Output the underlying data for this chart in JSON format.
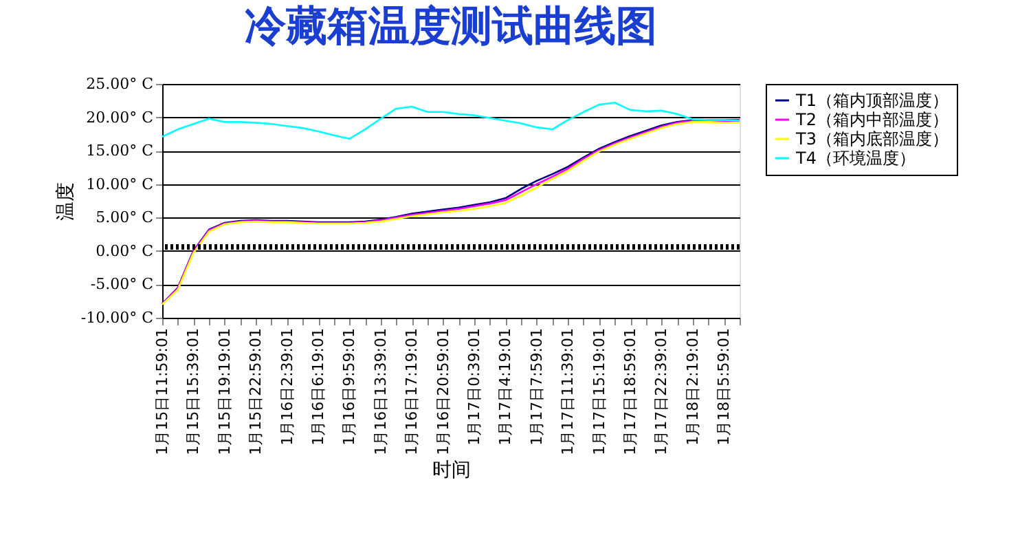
{
  "chart_data": {
    "type": "line",
    "title": "冷藏箱温度测试曲线图",
    "xlabel": "时间",
    "ylabel": "温度",
    "categories": [
      "1月15日11:59:01",
      null,
      "1月15日15:39:01",
      null,
      "1月15日19:19:01",
      null,
      "1月15日22:59:01",
      null,
      "1月16日2:39:01",
      null,
      "1月16日6:19:01",
      null,
      "1月16日9:59:01",
      null,
      "1月16日13:39:01",
      null,
      "1月16日17:19:01",
      null,
      "1月16日20:59:01",
      null,
      "1月17日0:39:01",
      null,
      "1月17日4:19:01",
      null,
      "1月17日7:59:01",
      null,
      "1月17日11:39:01",
      null,
      "1月17日15:19:01",
      null,
      "1月17日18:59:01",
      null,
      "1月17日22:39:01",
      null,
      "1月18日2:19:01",
      null,
      "1月18日5:59:01",
      null
    ],
    "ylim": [
      -10,
      25
    ],
    "yticks": [
      {
        "value": -10,
        "label": "-10.00° C"
      },
      {
        "value": -5,
        "label": "-5.00° C"
      },
      {
        "value": 0,
        "label": "0.00° C"
      },
      {
        "value": 5,
        "label": "5.00° C"
      },
      {
        "value": 10,
        "label": "10.00° C"
      },
      {
        "value": 15,
        "label": "15.00° C"
      },
      {
        "value": 20,
        "label": "20.00° C"
      },
      {
        "value": 25,
        "label": "25.00° C"
      }
    ],
    "grid": "y",
    "legend": "right",
    "line_style": "solid",
    "marker": "none",
    "ref_lines": [
      {
        "axis": "y",
        "value": 0.6,
        "color": "#000000",
        "line_style": "dotted"
      }
    ],
    "series": [
      {
        "name": "T1（箱内顶部温度）",
        "color": "#000080",
        "values": [
          -7.9,
          -5.5,
          0.0,
          3.2,
          4.2,
          4.5,
          4.6,
          4.5,
          4.5,
          4.4,
          4.3,
          4.3,
          4.3,
          4.4,
          4.7,
          5.1,
          5.6,
          5.9,
          6.2,
          6.5,
          6.9,
          7.3,
          7.9,
          9.3,
          10.5,
          11.5,
          12.6,
          14.0,
          15.3,
          16.3,
          17.2,
          18.0,
          18.8,
          19.3,
          19.6,
          19.6,
          19.6,
          19.6
        ]
      },
      {
        "name": "T2（箱内中部温度）",
        "color": "#ff00ff",
        "values": [
          -7.9,
          -5.6,
          -0.1,
          3.1,
          4.1,
          4.4,
          4.5,
          4.4,
          4.4,
          4.3,
          4.2,
          4.2,
          4.2,
          4.3,
          4.6,
          5.0,
          5.4,
          5.7,
          6.0,
          6.3,
          6.7,
          7.1,
          7.6,
          8.8,
          10.0,
          11.1,
          12.3,
          13.8,
          15.1,
          16.1,
          17.0,
          17.8,
          18.6,
          19.2,
          19.5,
          19.5,
          19.4,
          19.4
        ]
      },
      {
        "name": "T3（箱内底部温度）",
        "color": "#ffff00",
        "values": [
          -8.0,
          -5.8,
          -0.3,
          2.9,
          4.0,
          4.3,
          4.4,
          4.3,
          4.3,
          4.2,
          4.1,
          4.1,
          4.1,
          4.2,
          4.4,
          4.8,
          5.2,
          5.5,
          5.8,
          6.0,
          6.3,
          6.7,
          7.2,
          8.3,
          9.5,
          10.8,
          12.0,
          13.5,
          14.9,
          15.9,
          16.8,
          17.6,
          18.4,
          19.0,
          19.3,
          19.3,
          19.2,
          19.2
        ]
      },
      {
        "name": "T4（环境温度）",
        "color": "#00ffff",
        "values": [
          17.1,
          18.2,
          19.0,
          19.8,
          19.3,
          19.3,
          19.2,
          19.0,
          18.7,
          18.4,
          17.9,
          17.3,
          16.8,
          18.2,
          19.8,
          21.3,
          21.6,
          20.8,
          20.8,
          20.5,
          20.3,
          19.9,
          19.5,
          19.1,
          18.5,
          18.2,
          19.6,
          20.8,
          21.9,
          22.2,
          21.1,
          20.9,
          21.0,
          20.5,
          19.7,
          19.6,
          19.6,
          19.5
        ]
      }
    ]
  }
}
